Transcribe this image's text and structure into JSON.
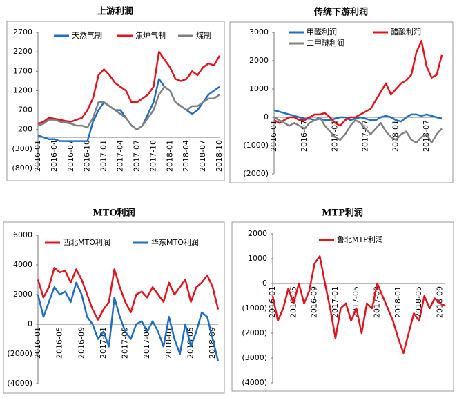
{
  "chart_data": [
    {
      "type": "line",
      "title": "上游利润",
      "categories": [
        "2016-01",
        null,
        null,
        "2016-04",
        null,
        null,
        "2016-07",
        null,
        null,
        "2016-10",
        null,
        null,
        "2017-01",
        null,
        null,
        "2017-04",
        null,
        null,
        "2017-07",
        null,
        null,
        "2017-10",
        null,
        null,
        "2018-01",
        null,
        null,
        "2018-04",
        null,
        null,
        "2018-07",
        null,
        null,
        "2018-10"
      ],
      "series": [
        {
          "name": "天然气制",
          "color": "#1f6fc0",
          "values": [
            50,
            0,
            -50,
            -50,
            -100,
            -100,
            -100,
            -100,
            -100,
            -100,
            400,
            700,
            900,
            800,
            700,
            700,
            500,
            300,
            200,
            300,
            600,
            900,
            1500,
            1300,
            1200,
            900,
            800,
            700,
            600,
            700,
            900,
            1100,
            1200,
            1300
          ]
        },
        {
          "name": "焦炉气制",
          "color": "#e0141c",
          "values": [
            350,
            400,
            500,
            480,
            450,
            420,
            400,
            450,
            500,
            700,
            1000,
            1600,
            1750,
            1600,
            1400,
            1300,
            1200,
            900,
            900,
            1000,
            1100,
            1300,
            2200,
            2000,
            1800,
            1500,
            1450,
            1500,
            1700,
            1600,
            1800,
            1900,
            1850,
            2100
          ]
        },
        {
          "name": "煤制",
          "color": "#808080",
          "values": [
            300,
            350,
            450,
            450,
            400,
            380,
            350,
            300,
            300,
            250,
            500,
            900,
            900,
            800,
            700,
            600,
            500,
            300,
            200,
            300,
            500,
            700,
            1100,
            1300,
            1200,
            900,
            800,
            700,
            800,
            800,
            900,
            1000,
            1000,
            1100
          ]
        }
      ],
      "ylim": [
        -800,
        2700
      ],
      "yticks": [
        {
          "value": -800,
          "label": "(800)"
        },
        {
          "value": -300,
          "label": "(300)"
        },
        200,
        700,
        1200,
        1700,
        2200,
        2700
      ],
      "grid": false
    },
    {
      "type": "line",
      "title": "传统下游利润",
      "categories": [
        "2016-01",
        null,
        null,
        null,
        null,
        null,
        "2016-07",
        null,
        null,
        null,
        null,
        null,
        "2017-01",
        null,
        null,
        null,
        null,
        null,
        "2017-07",
        null,
        null,
        null,
        null,
        null,
        "2018-01",
        null,
        null,
        null,
        null,
        null,
        "2018-07",
        null,
        null,
        null
      ],
      "series": [
        {
          "name": "甲醛利润",
          "color": "#1f6fc0",
          "values": [
            250,
            200,
            150,
            100,
            50,
            0,
            -50,
            -50,
            -100,
            -50,
            -100,
            -100,
            -50,
            0,
            0,
            -100,
            -50,
            0,
            -50,
            -100,
            -100,
            0,
            50,
            0,
            -100,
            -150,
            0,
            100,
            100,
            50,
            100,
            50,
            0,
            -50
          ]
        },
        {
          "name": "醋酸利润",
          "color": "#e0141c",
          "values": [
            -100,
            -200,
            -100,
            0,
            0,
            -100,
            -100,
            0,
            100,
            100,
            150,
            0,
            -200,
            -300,
            -100,
            0,
            0,
            100,
            200,
            300,
            600,
            900,
            1200,
            800,
            1000,
            1200,
            1300,
            1500,
            2300,
            2700,
            1800,
            1400,
            1500,
            2200
          ]
        },
        {
          "name": "二甲醚利润",
          "color": "#808080",
          "values": [
            0,
            -100,
            -200,
            -300,
            -200,
            -300,
            -400,
            -200,
            -100,
            0,
            -300,
            -500,
            -700,
            -800,
            -600,
            -300,
            -100,
            -200,
            -400,
            -600,
            -400,
            -200,
            -500,
            -700,
            -800,
            -600,
            -500,
            -800,
            -900,
            -700,
            -600,
            -900,
            -600,
            -400
          ]
        }
      ],
      "ylim": [
        -2000,
        3000
      ],
      "yticks": [
        {
          "value": -2000,
          "label": "(2000)"
        },
        {
          "value": -1000,
          "label": "(1000)"
        },
        0,
        1000,
        2000,
        3000
      ],
      "grid": false
    },
    {
      "type": "line",
      "title": "MTO利润",
      "categories": [
        "2016-01",
        null,
        null,
        null,
        "2016-05",
        null,
        null,
        null,
        "2016-09",
        null,
        null,
        null,
        "2017-01",
        null,
        null,
        null,
        "2017-05",
        null,
        null,
        null,
        "2017-09",
        null,
        null,
        null,
        "2018-01",
        null,
        null,
        null,
        "2018-05",
        null,
        null,
        null,
        "2018-09",
        null
      ],
      "series": [
        {
          "name": "西北MTO利润",
          "color": "#e0141c",
          "values": [
            3000,
            1800,
            2500,
            3800,
            3500,
            3600,
            2800,
            3700,
            3000,
            2000,
            1000,
            300,
            1000,
            1500,
            3700,
            2500,
            1500,
            800,
            2000,
            2200,
            1800,
            2500,
            2000,
            1500,
            2800,
            2000,
            2500,
            3000,
            1500,
            2500,
            2800,
            3300,
            2500,
            1000
          ]
        },
        {
          "name": "华东MTO利润",
          "color": "#1f6fc0",
          "values": [
            2000,
            500,
            1500,
            2500,
            2000,
            2200,
            1500,
            2800,
            2000,
            500,
            0,
            -1000,
            -500,
            -1500,
            1800,
            500,
            -500,
            -1000,
            0,
            200,
            -500,
            200,
            -500,
            -1500,
            500,
            -1000,
            -2000,
            0,
            -1500,
            -500,
            800,
            500,
            -1000,
            -2500
          ]
        }
      ],
      "ylim": [
        -4000,
        6000
      ],
      "yticks": [
        {
          "value": -4000,
          "label": "(4000)"
        },
        {
          "value": -2000,
          "label": "(2000)"
        },
        0,
        2000,
        4000,
        6000
      ],
      "grid": false
    },
    {
      "type": "line",
      "title": "MTP利润",
      "categories": [
        "2016-01",
        null,
        null,
        null,
        "2016-05",
        null,
        null,
        null,
        "2016-09",
        null,
        null,
        null,
        "2017-01",
        null,
        null,
        null,
        "2017-05",
        null,
        null,
        null,
        "2017-09",
        null,
        null,
        null,
        "2018-01",
        null,
        null,
        null,
        "2018-05",
        null,
        null,
        null,
        "2018-09",
        null
      ],
      "series": [
        {
          "name": "鲁北MTP利润",
          "color": "#e0141c",
          "values": [
            -500,
            -1500,
            -1000,
            -200,
            -800,
            0,
            -800,
            -300,
            800,
            1100,
            0,
            -1000,
            -2200,
            -1000,
            -800,
            -1500,
            -1000,
            -2000,
            -800,
            -1000,
            0,
            -500,
            -1000,
            -1500,
            -2200,
            -2800,
            -2000,
            -1200,
            -1500,
            -500,
            -1000,
            -600,
            -800,
            -900
          ]
        }
      ],
      "ylim": [
        -4000,
        2000
      ],
      "yticks": [
        {
          "value": -4000,
          "label": "(4000)"
        },
        {
          "value": -3000,
          "label": "(3000)"
        },
        {
          "value": -2000,
          "label": "(2000)"
        },
        {
          "value": -1000,
          "label": "(1000)"
        },
        0,
        1000,
        2000
      ],
      "grid": false
    }
  ]
}
